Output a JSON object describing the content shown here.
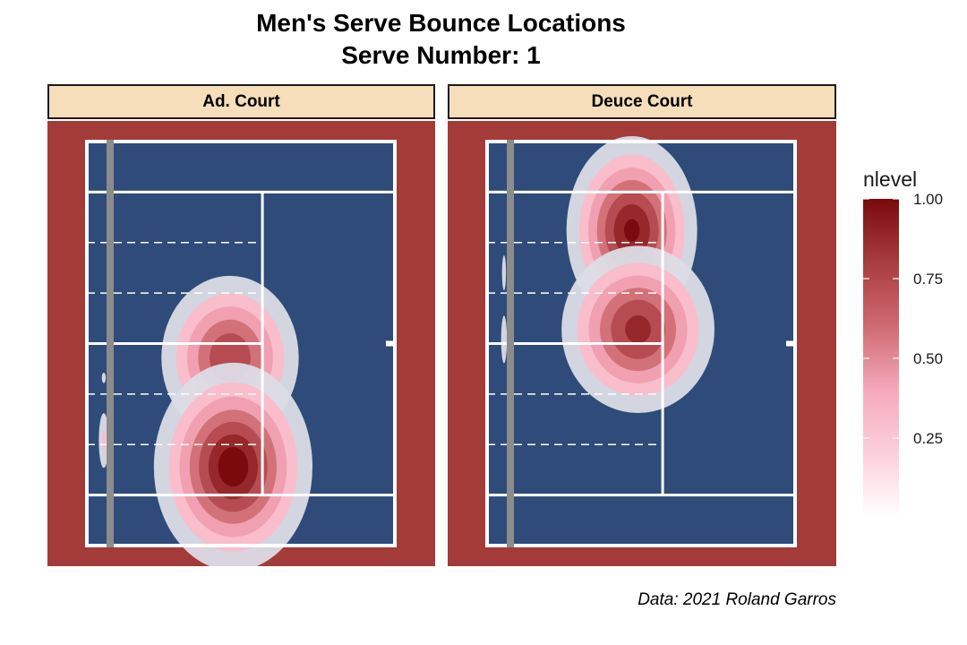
{
  "chart_data": {
    "type": "heatmap",
    "title": "Men's Serve Bounce Locations",
    "subtitle": "Serve Number: 1",
    "caption": "Data: 2021 Roland Garros",
    "legend": {
      "title": "nlevel",
      "range": [
        0.0,
        1.0
      ],
      "ticks": [
        "1.00",
        "0.75",
        "0.50",
        "0.25"
      ],
      "tick_values": [
        1.0,
        0.75,
        0.5,
        0.25
      ],
      "colors": [
        "#ffffff",
        "#fbd0dc",
        "#f6a9bc",
        "#cf6b72",
        "#a83c3f",
        "#7a0a0c"
      ],
      "placement": "right"
    },
    "colors": {
      "court_surface": "#a33b38",
      "court_blue": "#2f4b7a",
      "strip_fill": "#f5deb9"
    },
    "panels": [
      {
        "label": "Ad. Court",
        "hotspots": [
          {
            "x": 0.465,
            "y": 0.535,
            "peak": 0.78,
            "sx": 0.11,
            "sy": 0.1
          },
          {
            "x": 0.475,
            "y": 0.805,
            "peak": 1.0,
            "sx": 0.12,
            "sy": 0.12
          },
          {
            "x": 0.055,
            "y": 0.74,
            "peak": 0.25,
            "sx": 0.012,
            "sy": 0.05
          },
          {
            "x": 0.055,
            "y": 0.585,
            "peak": 0.18,
            "sx": 0.006,
            "sy": 0.012
          }
        ]
      },
      {
        "label": "Deuce Court",
        "hotspots": [
          {
            "x": 0.47,
            "y": 0.22,
            "peak": 0.95,
            "sx": 0.1,
            "sy": 0.11
          },
          {
            "x": 0.49,
            "y": 0.465,
            "peak": 0.85,
            "sx": 0.12,
            "sy": 0.1
          },
          {
            "x": 0.055,
            "y": 0.325,
            "peak": 0.18,
            "sx": 0.006,
            "sy": 0.04
          },
          {
            "x": 0.055,
            "y": 0.49,
            "peak": 0.2,
            "sx": 0.008,
            "sy": 0.05
          }
        ]
      }
    ]
  }
}
